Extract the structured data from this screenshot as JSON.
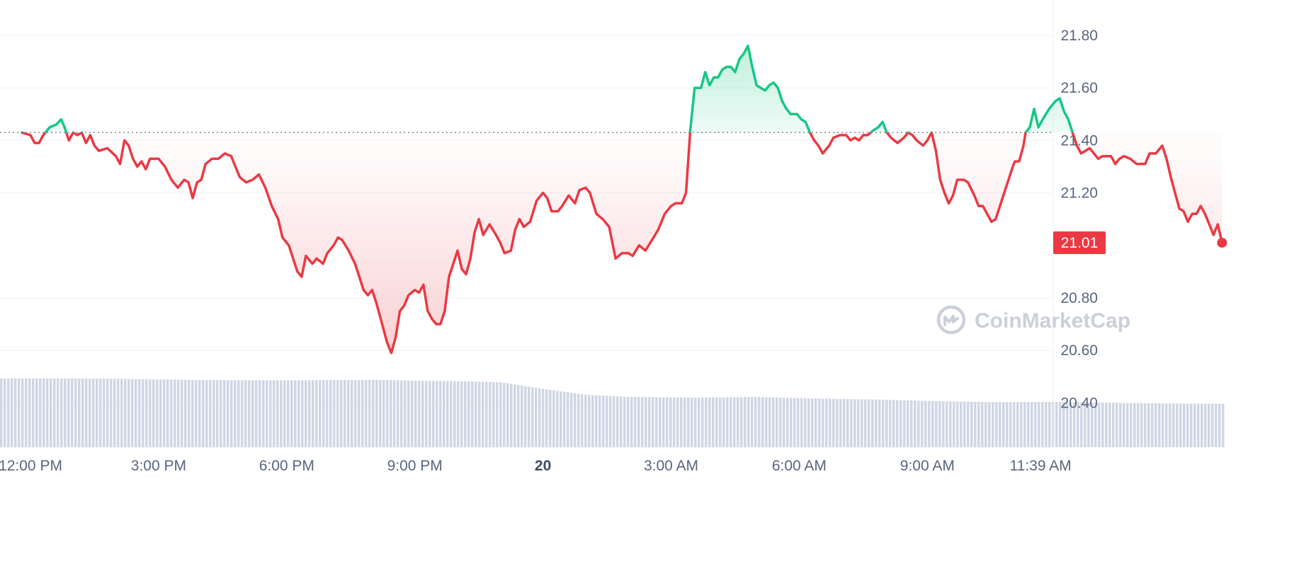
{
  "chart_data": {
    "type": "area",
    "title": "",
    "xlabel": "",
    "ylabel": "",
    "ylim": [
      20.25,
      21.95
    ],
    "y_ticks": [
      "21.80",
      "21.60",
      "21.40",
      "21.20",
      "20.80",
      "20.60",
      "20.40"
    ],
    "x_ticks": [
      {
        "label": "12:00 PM",
        "h": 0
      },
      {
        "label": "3:00 PM",
        "h": 3
      },
      {
        "label": "6:00 PM",
        "h": 6
      },
      {
        "label": "9:00 PM",
        "h": 9
      },
      {
        "label": "20",
        "h": 12,
        "bold": true
      },
      {
        "label": "3:00 AM",
        "h": 15
      },
      {
        "label": "6:00 AM",
        "h": 18
      },
      {
        "label": "9:00 AM",
        "h": 21
      },
      {
        "label": "11:39 AM",
        "h": 23.65
      }
    ],
    "reference_price": 21.43,
    "current_price": "21.01",
    "grid": true,
    "series": [
      {
        "points": [
          [
            -0.2,
            21.43
          ],
          [
            0.0,
            21.42
          ],
          [
            0.1,
            21.39
          ],
          [
            0.2,
            21.39
          ],
          [
            0.3,
            21.42
          ],
          [
            0.45,
            21.45
          ],
          [
            0.6,
            21.46
          ],
          [
            0.72,
            21.48
          ],
          [
            0.8,
            21.45
          ],
          [
            0.9,
            21.4
          ],
          [
            1.0,
            21.43
          ],
          [
            1.1,
            21.42
          ],
          [
            1.2,
            21.43
          ],
          [
            1.3,
            21.39
          ],
          [
            1.4,
            21.42
          ],
          [
            1.5,
            21.38
          ],
          [
            1.6,
            21.36
          ],
          [
            1.8,
            21.37
          ],
          [
            2.0,
            21.34
          ],
          [
            2.1,
            21.31
          ],
          [
            2.2,
            21.4
          ],
          [
            2.3,
            21.38
          ],
          [
            2.4,
            21.33
          ],
          [
            2.5,
            21.3
          ],
          [
            2.6,
            21.32
          ],
          [
            2.7,
            21.29
          ],
          [
            2.8,
            21.33
          ],
          [
            3.0,
            21.33
          ],
          [
            3.15,
            21.3
          ],
          [
            3.3,
            21.25
          ],
          [
            3.45,
            21.22
          ],
          [
            3.6,
            21.25
          ],
          [
            3.7,
            21.24
          ],
          [
            3.8,
            21.18
          ],
          [
            3.9,
            21.24
          ],
          [
            4.0,
            21.25
          ],
          [
            4.1,
            21.31
          ],
          [
            4.25,
            21.33
          ],
          [
            4.4,
            21.33
          ],
          [
            4.55,
            21.35
          ],
          [
            4.7,
            21.34
          ],
          [
            4.8,
            21.3
          ],
          [
            4.9,
            21.26
          ],
          [
            5.05,
            21.24
          ],
          [
            5.2,
            21.25
          ],
          [
            5.35,
            21.27
          ],
          [
            5.5,
            21.22
          ],
          [
            5.65,
            21.15
          ],
          [
            5.8,
            21.1
          ],
          [
            5.9,
            21.03
          ],
          [
            6.05,
            21.0
          ],
          [
            6.15,
            20.95
          ],
          [
            6.25,
            20.9
          ],
          [
            6.35,
            20.88
          ],
          [
            6.45,
            20.96
          ],
          [
            6.6,
            20.93
          ],
          [
            6.7,
            20.95
          ],
          [
            6.85,
            20.93
          ],
          [
            6.95,
            20.97
          ],
          [
            7.1,
            21.0
          ],
          [
            7.2,
            21.03
          ],
          [
            7.3,
            21.02
          ],
          [
            7.45,
            20.98
          ],
          [
            7.6,
            20.93
          ],
          [
            7.7,
            20.88
          ],
          [
            7.8,
            20.83
          ],
          [
            7.9,
            20.81
          ],
          [
            8.0,
            20.83
          ],
          [
            8.1,
            20.78
          ],
          [
            8.2,
            20.72
          ],
          [
            8.35,
            20.63
          ],
          [
            8.45,
            20.59
          ],
          [
            8.55,
            20.65
          ],
          [
            8.65,
            20.75
          ],
          [
            8.75,
            20.77
          ],
          [
            8.85,
            20.81
          ],
          [
            9.0,
            20.83
          ],
          [
            9.1,
            20.82
          ],
          [
            9.2,
            20.85
          ],
          [
            9.3,
            20.75
          ],
          [
            9.4,
            20.72
          ],
          [
            9.5,
            20.7
          ],
          [
            9.6,
            20.7
          ],
          [
            9.7,
            20.75
          ],
          [
            9.8,
            20.88
          ],
          [
            9.9,
            20.93
          ],
          [
            10.0,
            20.98
          ],
          [
            10.1,
            20.91
          ],
          [
            10.2,
            20.89
          ],
          [
            10.3,
            20.95
          ],
          [
            10.4,
            21.05
          ],
          [
            10.5,
            21.1
          ],
          [
            10.6,
            21.04
          ],
          [
            10.75,
            21.08
          ],
          [
            10.9,
            21.04
          ],
          [
            11.0,
            21.01
          ],
          [
            11.1,
            20.97
          ],
          [
            11.25,
            20.98
          ],
          [
            11.35,
            21.06
          ],
          [
            11.45,
            21.1
          ],
          [
            11.55,
            21.07
          ],
          [
            11.7,
            21.09
          ],
          [
            11.85,
            21.17
          ],
          [
            12.0,
            21.2
          ],
          [
            12.1,
            21.18
          ],
          [
            12.2,
            21.13
          ],
          [
            12.35,
            21.13
          ],
          [
            12.45,
            21.15
          ],
          [
            12.6,
            21.19
          ],
          [
            12.75,
            21.16
          ],
          [
            12.85,
            21.21
          ],
          [
            13.0,
            21.22
          ],
          [
            13.1,
            21.2
          ],
          [
            13.25,
            21.12
          ],
          [
            13.4,
            21.1
          ],
          [
            13.55,
            21.07
          ],
          [
            13.7,
            20.95
          ],
          [
            13.85,
            20.97
          ],
          [
            14.0,
            20.97
          ],
          [
            14.1,
            20.96
          ],
          [
            14.25,
            21.0
          ],
          [
            14.4,
            20.98
          ],
          [
            14.55,
            21.02
          ],
          [
            14.7,
            21.06
          ],
          [
            14.85,
            21.12
          ],
          [
            15.0,
            21.15
          ],
          [
            15.1,
            21.16
          ],
          [
            15.25,
            21.16
          ],
          [
            15.35,
            21.2
          ],
          [
            15.45,
            21.44
          ],
          [
            15.55,
            21.6
          ],
          [
            15.7,
            21.6
          ],
          [
            15.8,
            21.66
          ],
          [
            15.9,
            21.61
          ],
          [
            16.0,
            21.64
          ],
          [
            16.1,
            21.64
          ],
          [
            16.2,
            21.67
          ],
          [
            16.3,
            21.68
          ],
          [
            16.4,
            21.68
          ],
          [
            16.5,
            21.66
          ],
          [
            16.6,
            21.71
          ],
          [
            16.7,
            21.73
          ],
          [
            16.8,
            21.76
          ],
          [
            16.9,
            21.68
          ],
          [
            17.0,
            21.61
          ],
          [
            17.1,
            21.6
          ],
          [
            17.2,
            21.59
          ],
          [
            17.3,
            21.61
          ],
          [
            17.4,
            21.62
          ],
          [
            17.5,
            21.6
          ],
          [
            17.6,
            21.55
          ],
          [
            17.7,
            21.52
          ],
          [
            17.8,
            21.5
          ],
          [
            17.95,
            21.5
          ],
          [
            18.05,
            21.48
          ],
          [
            18.15,
            21.47
          ],
          [
            18.25,
            21.43
          ],
          [
            18.35,
            21.4
          ],
          [
            18.45,
            21.38
          ],
          [
            18.55,
            21.35
          ],
          [
            18.7,
            21.38
          ],
          [
            18.8,
            21.41
          ],
          [
            18.95,
            21.42
          ],
          [
            19.1,
            21.42
          ],
          [
            19.2,
            21.4
          ],
          [
            19.3,
            21.41
          ],
          [
            19.4,
            21.4
          ],
          [
            19.5,
            21.42
          ],
          [
            19.6,
            21.42
          ],
          [
            19.75,
            21.44
          ],
          [
            19.85,
            21.45
          ],
          [
            19.95,
            21.47
          ],
          [
            20.05,
            21.43
          ],
          [
            20.15,
            21.41
          ],
          [
            20.3,
            21.39
          ],
          [
            20.45,
            21.41
          ],
          [
            20.55,
            21.43
          ],
          [
            20.65,
            21.42
          ],
          [
            20.75,
            21.4
          ],
          [
            20.9,
            21.38
          ],
          [
            21.0,
            21.4
          ],
          [
            21.1,
            21.43
          ],
          [
            21.2,
            21.36
          ],
          [
            21.3,
            21.25
          ],
          [
            21.4,
            21.2
          ],
          [
            21.5,
            21.16
          ],
          [
            21.6,
            21.19
          ],
          [
            21.7,
            21.25
          ],
          [
            21.85,
            21.25
          ],
          [
            21.95,
            21.24
          ],
          [
            22.1,
            21.19
          ],
          [
            22.2,
            21.15
          ],
          [
            22.3,
            21.15
          ],
          [
            22.4,
            21.12
          ],
          [
            22.5,
            21.09
          ],
          [
            22.6,
            21.1
          ],
          [
            22.7,
            21.15
          ],
          [
            22.8,
            21.2
          ],
          [
            22.9,
            21.25
          ],
          [
            23.0,
            21.3
          ],
          [
            23.05,
            21.32
          ],
          [
            23.15,
            21.32
          ],
          [
            23.25,
            21.38
          ],
          [
            23.3,
            21.43
          ],
          [
            23.4,
            21.45
          ],
          [
            23.5,
            21.52
          ],
          [
            23.6,
            21.45
          ],
          [
            23.7,
            21.48
          ],
          [
            23.85,
            21.52
          ],
          [
            24.0,
            21.55
          ],
          [
            24.1,
            21.56
          ],
          [
            24.2,
            21.51
          ],
          [
            24.3,
            21.48
          ],
          [
            24.4,
            21.43
          ],
          [
            24.5,
            21.38
          ],
          [
            24.6,
            21.35
          ],
          [
            24.7,
            21.36
          ],
          [
            24.8,
            21.37
          ],
          [
            24.9,
            21.35
          ],
          [
            25.0,
            21.33
          ],
          [
            25.1,
            21.34
          ],
          [
            25.3,
            21.34
          ],
          [
            25.4,
            21.31
          ],
          [
            25.5,
            21.33
          ],
          [
            25.6,
            21.34
          ],
          [
            25.75,
            21.33
          ],
          [
            25.9,
            21.31
          ],
          [
            26.1,
            21.31
          ],
          [
            26.2,
            21.35
          ],
          [
            26.35,
            21.35
          ],
          [
            26.5,
            21.38
          ],
          [
            26.6,
            21.33
          ],
          [
            26.7,
            21.26
          ],
          [
            26.8,
            21.2
          ],
          [
            26.9,
            21.14
          ],
          [
            27.0,
            21.13
          ],
          [
            27.1,
            21.09
          ],
          [
            27.2,
            21.12
          ],
          [
            27.3,
            21.12
          ],
          [
            27.4,
            21.15
          ],
          [
            27.5,
            21.12
          ],
          [
            27.6,
            21.08
          ],
          [
            27.7,
            21.04
          ],
          [
            27.8,
            21.08
          ],
          [
            27.9,
            21.01
          ]
        ]
      }
    ],
    "volume": [
      [
        -0.2,
        0.486
      ],
      [
        2.0,
        0.484
      ],
      [
        4.0,
        0.474
      ],
      [
        6.0,
        0.472
      ],
      [
        8.0,
        0.476
      ],
      [
        9.0,
        0.47
      ],
      [
        10.0,
        0.466
      ],
      [
        11.0,
        0.458
      ],
      [
        11.3,
        0.444
      ],
      [
        12.0,
        0.41
      ],
      [
        13.0,
        0.37
      ],
      [
        14.0,
        0.355
      ],
      [
        15.5,
        0.35
      ],
      [
        17.0,
        0.354
      ],
      [
        18.5,
        0.343
      ],
      [
        20.0,
        0.335
      ],
      [
        21.5,
        0.322
      ],
      [
        23.0,
        0.318
      ],
      [
        24.0,
        0.32
      ],
      [
        25.5,
        0.313
      ],
      [
        27.0,
        0.308
      ],
      [
        27.9,
        0.307
      ]
    ]
  },
  "watermark": {
    "text": "CoinMarketCap",
    "icon": "coinmarketcap-logo-icon"
  },
  "colors": {
    "up": "#16c784",
    "down": "#ea3943",
    "grid": "#eff2f5",
    "axis_text": "#58667e",
    "volume": "#cfd6e4",
    "reference_line": "#808a9d",
    "watermark": "#c6cbd4"
  }
}
